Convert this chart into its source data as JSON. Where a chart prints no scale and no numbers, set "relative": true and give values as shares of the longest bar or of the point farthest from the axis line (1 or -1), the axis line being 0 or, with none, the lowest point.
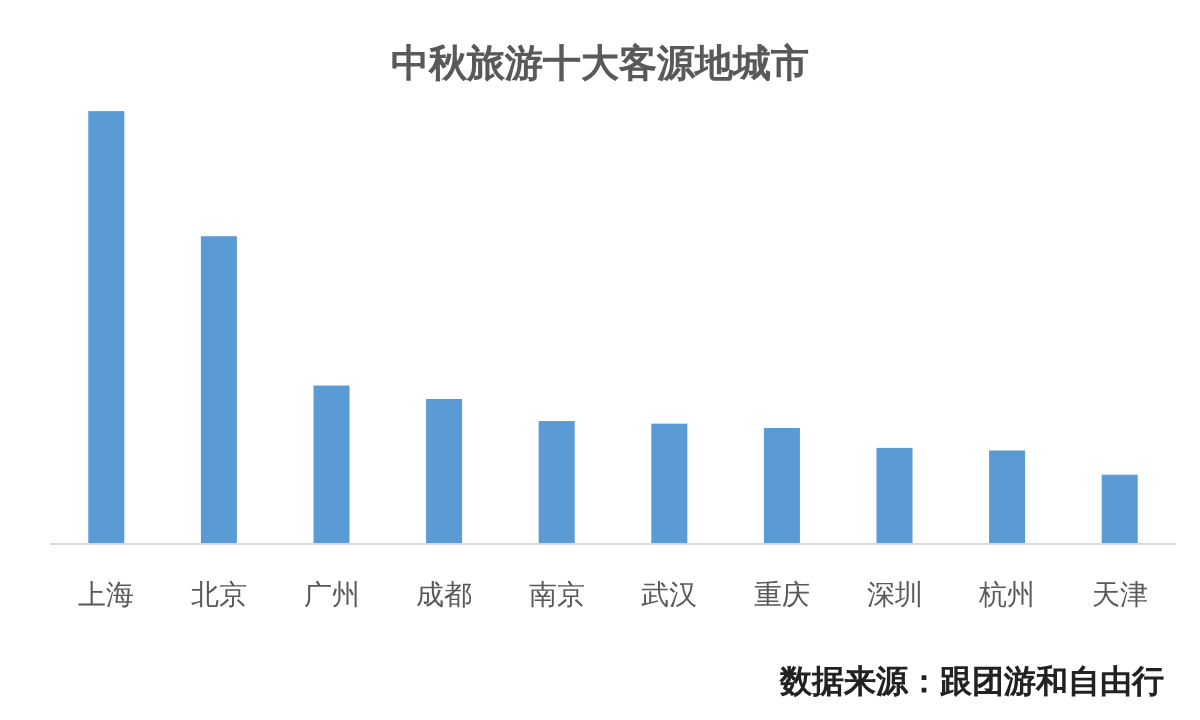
{
  "chart_data": {
    "type": "bar",
    "title": "中秋旅游十大客源地城市",
    "categories": [
      "上海",
      "北京",
      "广州",
      "成都",
      "南京",
      "武汉",
      "重庆",
      "深圳",
      "杭州",
      "天津"
    ],
    "values": [
      1,
      0.711,
      0.366,
      0.335,
      0.284,
      0.278,
      0.268,
      0.222,
      0.216,
      0.16
    ],
    "color": "#5b9bd5",
    "relative": true,
    "annotations": [
      "数据来源：跟团游和自由行"
    ]
  }
}
